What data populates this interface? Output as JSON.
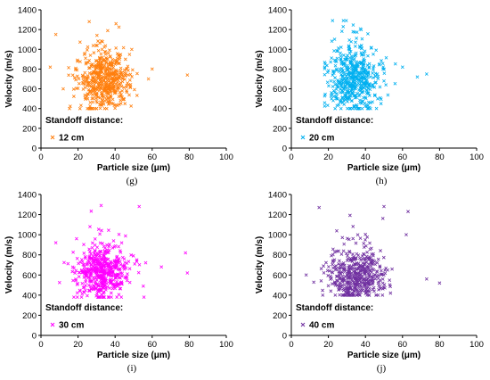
{
  "chart_data": [
    {
      "type": "scatter",
      "panel_label": "(g)",
      "xlabel": "Particle size (μm)",
      "ylabel": "Velocity (m/s)",
      "xlim": [
        0,
        100
      ],
      "ylim": [
        0,
        1400
      ],
      "xticks": [
        "0",
        "20",
        "40",
        "60",
        "80",
        "100"
      ],
      "yticks": [
        "0",
        "200",
        "400",
        "600",
        "800",
        "1000",
        "1200",
        "1400"
      ],
      "legend": {
        "title": "Standoff distance:",
        "placement": "lower-left"
      },
      "series": [
        {
          "name": "12 cm",
          "color": "#FF7F0E",
          "marker": "x",
          "cluster": {
            "count": 520,
            "x_center": 34,
            "x_spread": 7,
            "y_center": 700,
            "y_spread": 130,
            "x_range": [
              5,
              80
            ],
            "y_range": [
              400,
              1280
            ]
          },
          "outliers": [
            [
              5,
              820
            ],
            [
              8,
              1150
            ],
            [
              79,
              740
            ],
            [
              60,
              800
            ],
            [
              58,
              700
            ],
            [
              12,
              600
            ]
          ]
        }
      ]
    },
    {
      "type": "scatter",
      "panel_label": "(h)",
      "xlabel": "Particle size (μm)",
      "ylabel": "Velocity (m/s)",
      "xlim": [
        0,
        100
      ],
      "ylim": [
        0,
        1400
      ],
      "xticks": [
        "0",
        "20",
        "40",
        "60",
        "80",
        "100"
      ],
      "yticks": [
        "0",
        "200",
        "400",
        "600",
        "800",
        "1000",
        "1200",
        "1400"
      ],
      "legend": {
        "title": "Standoff distance:",
        "placement": "lower-left"
      },
      "series": [
        {
          "name": "20 cm",
          "color": "#00B0F0",
          "marker": "x",
          "cluster": {
            "count": 500,
            "x_center": 34,
            "x_spread": 7,
            "y_center": 700,
            "y_spread": 140,
            "x_range": [
              18,
              75
            ],
            "y_range": [
              400,
              1290
            ]
          },
          "outliers": [
            [
              73,
              750
            ],
            [
              68,
              720
            ],
            [
              60,
              820
            ],
            [
              28,
              1230
            ]
          ]
        }
      ]
    },
    {
      "type": "scatter",
      "panel_label": "(i)",
      "xlabel": "Particle size (μm)",
      "ylabel": "Velocity (m/s)",
      "xlim": [
        0,
        100
      ],
      "ylim": [
        0,
        1400
      ],
      "xticks": [
        "0",
        "20",
        "40",
        "60",
        "80",
        "100"
      ],
      "yticks": [
        "0",
        "200",
        "400",
        "600",
        "800",
        "1000",
        "1200",
        "1400"
      ],
      "legend": {
        "title": "Standoff distance:",
        "placement": "lower-left"
      },
      "series": [
        {
          "name": "30 cm",
          "color": "#FF00FF",
          "marker": "x",
          "cluster": {
            "count": 520,
            "x_center": 33,
            "x_spread": 7,
            "y_center": 620,
            "y_spread": 110,
            "x_range": [
              8,
              80
            ],
            "y_range": [
              380,
              1290
            ]
          },
          "outliers": [
            [
              8,
              920
            ],
            [
              78,
              820
            ],
            [
              79,
              620
            ],
            [
              53,
              1280
            ],
            [
              65,
              680
            ]
          ]
        }
      ]
    },
    {
      "type": "scatter",
      "panel_label": "(j)",
      "xlabel": "Particle size (μm)",
      "ylabel": "Velocity (m/s)",
      "xlim": [
        0,
        100
      ],
      "ylim": [
        0,
        1400
      ],
      "xticks": [
        "0",
        "20",
        "40",
        "60",
        "80",
        "100"
      ],
      "yticks": [
        "0",
        "200",
        "400",
        "600",
        "800",
        "1000",
        "1200",
        "1400"
      ],
      "legend": {
        "title": "Standoff distance:",
        "placement": "lower-left"
      },
      "series": [
        {
          "name": "40 cm",
          "color": "#7030A0",
          "marker": "x",
          "cluster": {
            "count": 480,
            "x_center": 35,
            "x_spread": 8,
            "y_center": 580,
            "y_spread": 110,
            "x_range": [
              8,
              80
            ],
            "y_range": [
              400,
              1300
            ]
          },
          "outliers": [
            [
              15,
              1270
            ],
            [
              63,
              1230
            ],
            [
              80,
              520
            ],
            [
              73,
              560
            ],
            [
              8,
              600
            ],
            [
              50,
              1280
            ],
            [
              62,
              1000
            ]
          ]
        }
      ]
    }
  ]
}
